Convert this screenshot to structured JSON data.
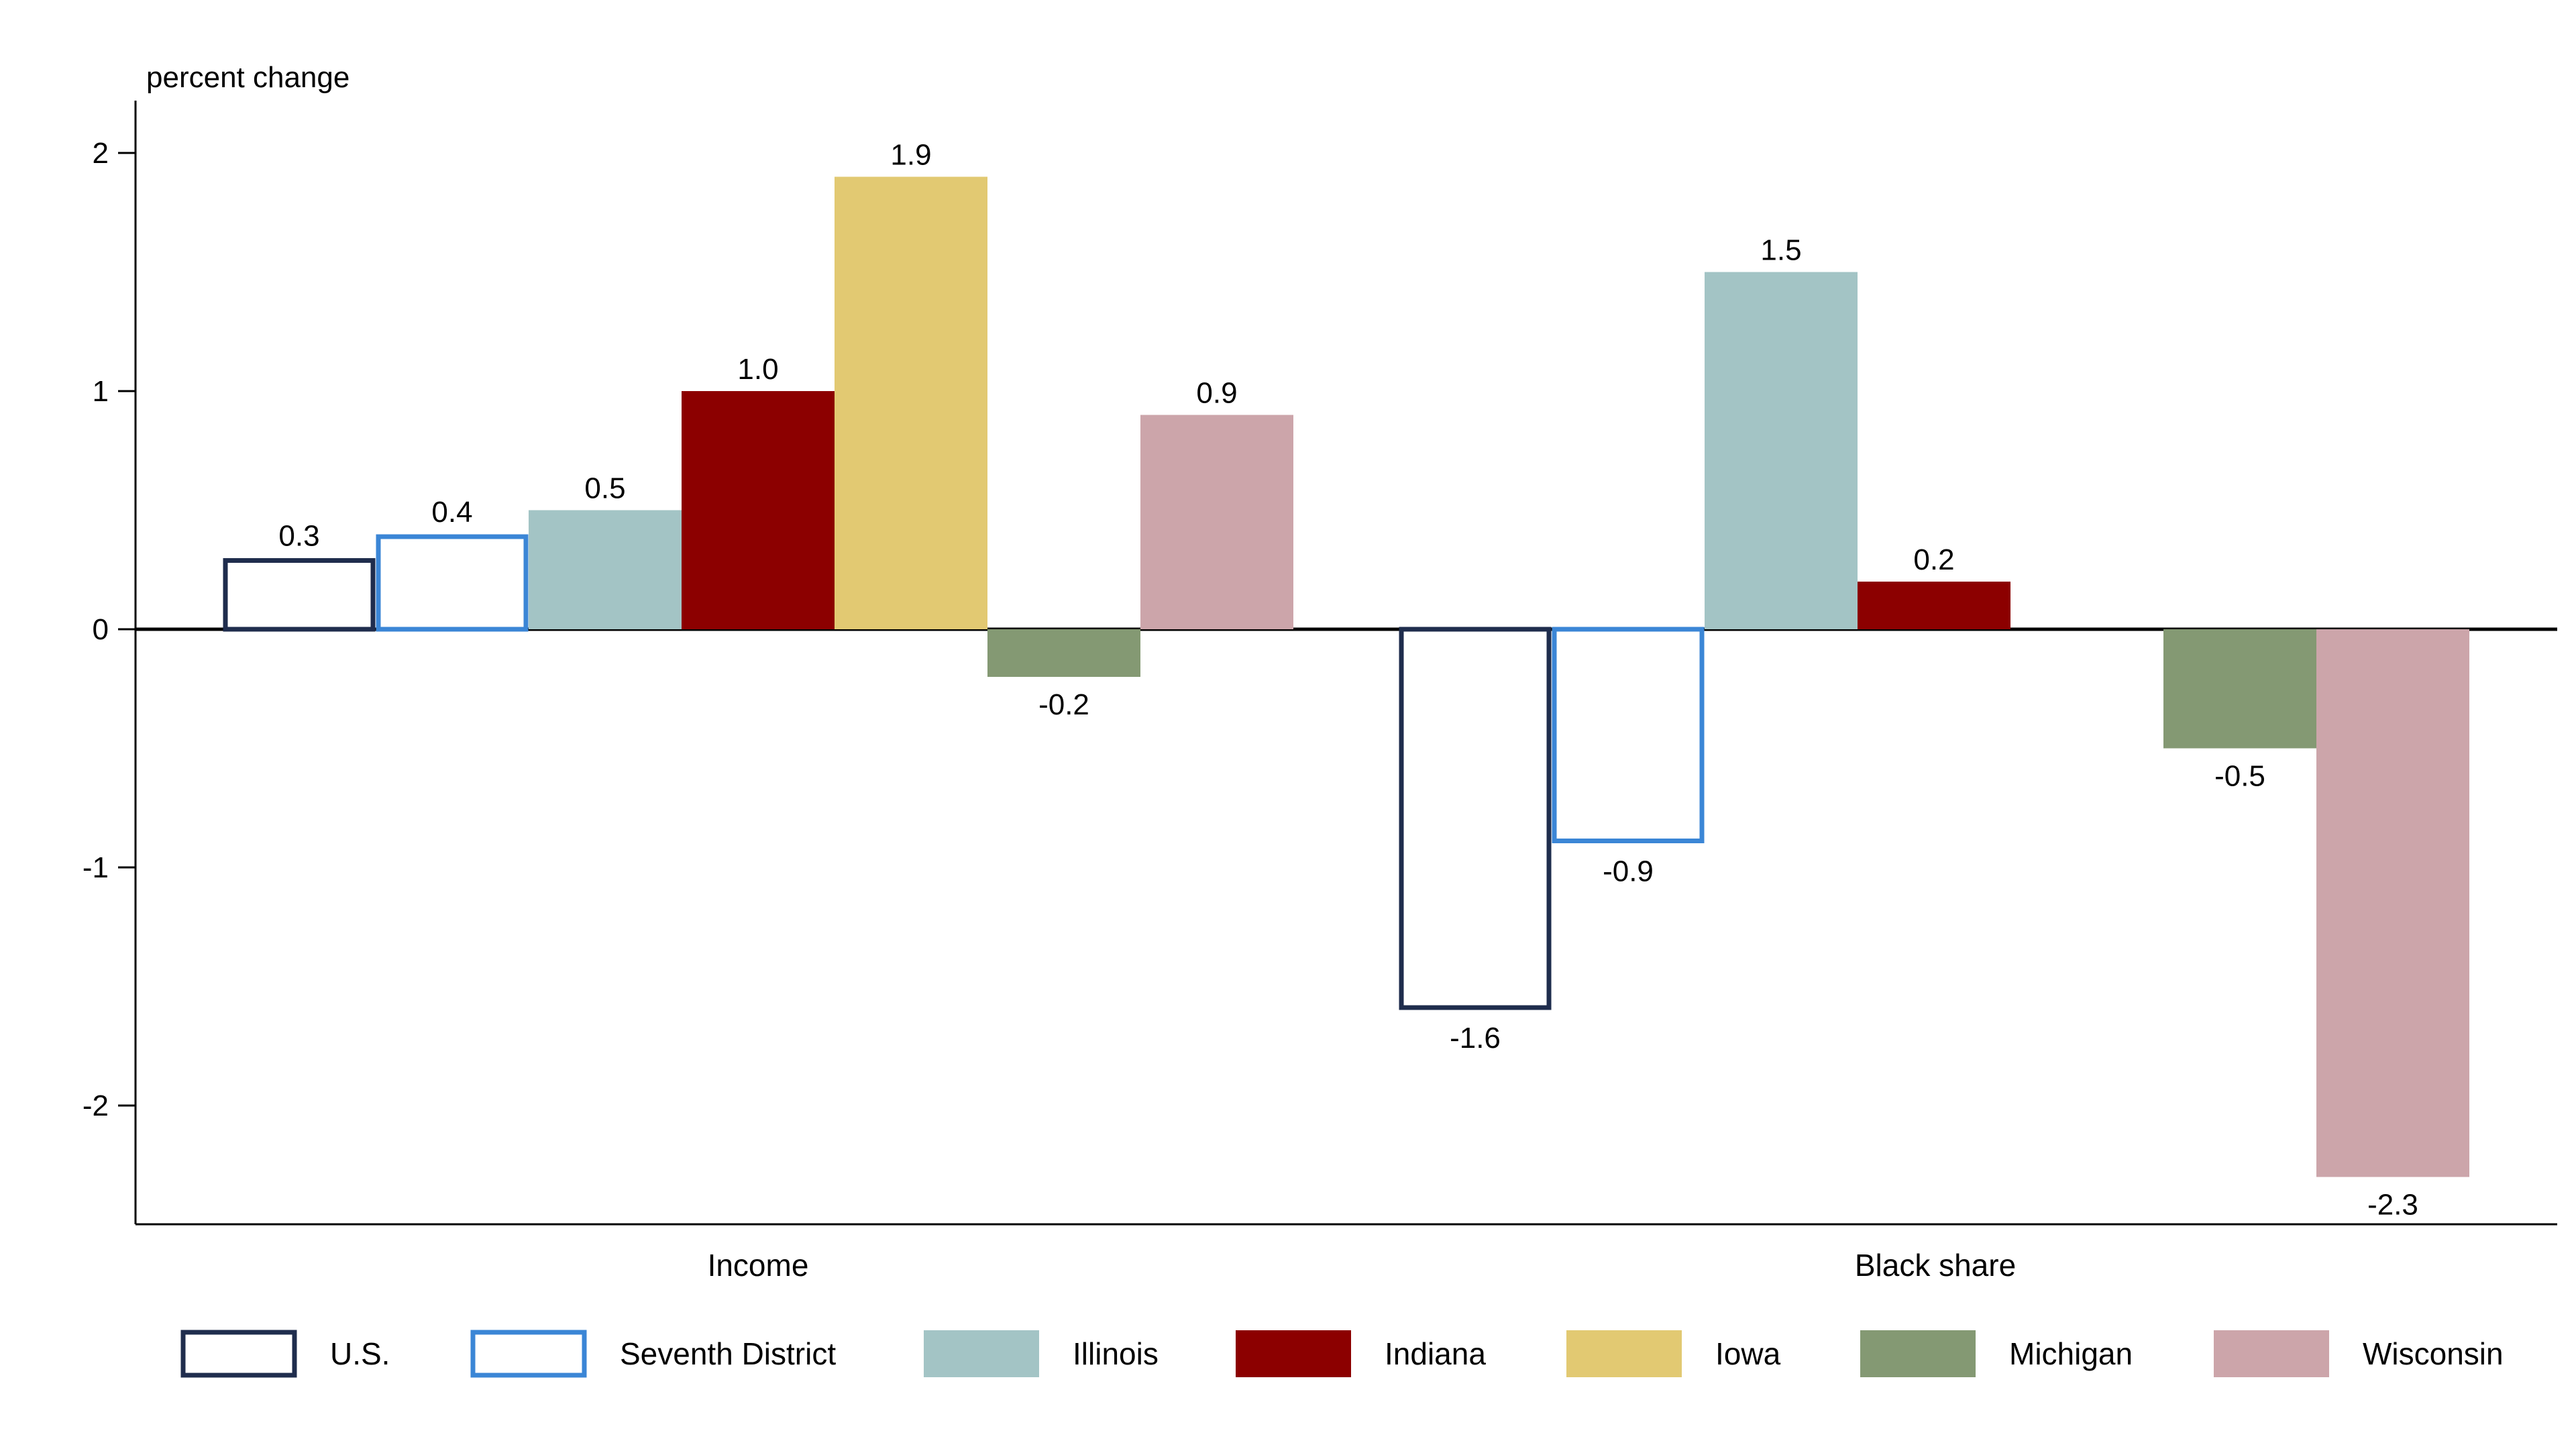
{
  "chart_data": {
    "type": "bar",
    "ylabel": "percent change",
    "ylim": [
      -2.5,
      2.2
    ],
    "yticks": [
      -2,
      -1,
      0,
      1,
      2
    ],
    "categories": [
      "Income",
      "Black share"
    ],
    "series": [
      {
        "name": "U.S.",
        "values": [
          0.3,
          -1.6
        ],
        "color": "#1f2d4d",
        "hollow": true
      },
      {
        "name": "Seventh District",
        "values": [
          0.4,
          -0.9
        ],
        "color": "#3b86d6",
        "hollow": true
      },
      {
        "name": "Illinois",
        "values": [
          0.5,
          1.5
        ],
        "color": "#a3c4c5",
        "hollow": false
      },
      {
        "name": "Indiana",
        "values": [
          1.0,
          0.2
        ],
        "color": "#8c0000",
        "hollow": false
      },
      {
        "name": "Iowa",
        "values": [
          1.9,
          null
        ],
        "color": "#e2c972",
        "hollow": false
      },
      {
        "name": "Michigan",
        "values": [
          -0.2,
          -0.5
        ],
        "color": "#849973",
        "hollow": false
      },
      {
        "name": "Wisconsin",
        "values": [
          0.9,
          -2.3
        ],
        "color": "#cca5aa",
        "hollow": false
      }
    ],
    "grid": false,
    "legend_position": "bottom"
  }
}
